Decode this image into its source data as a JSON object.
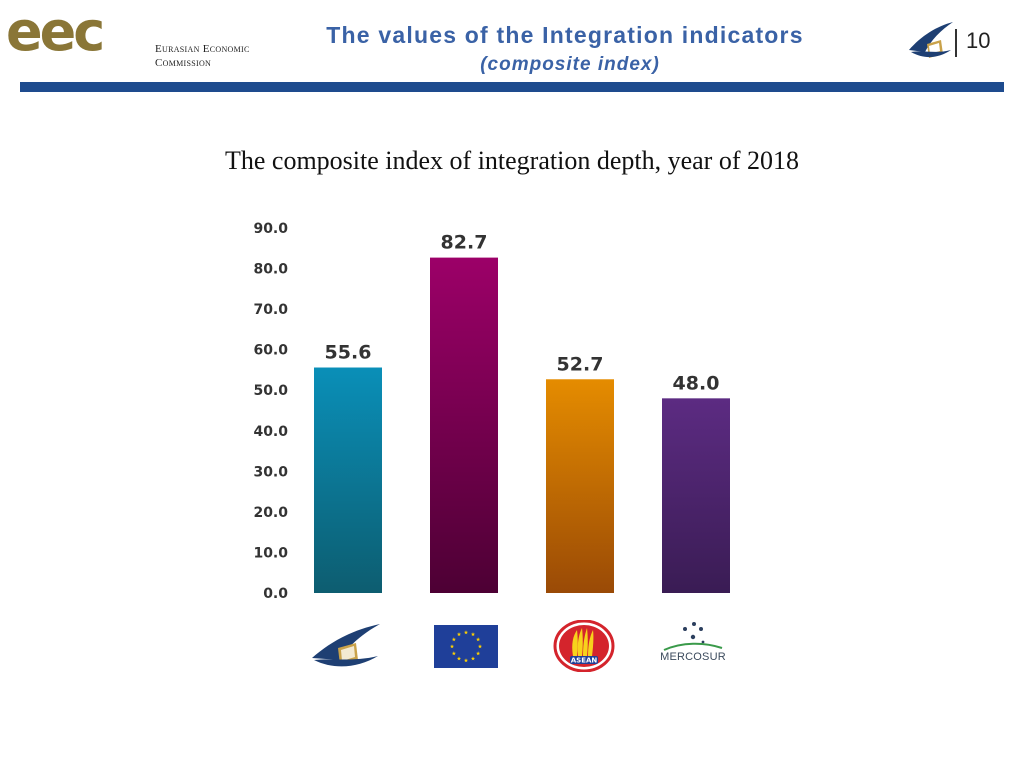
{
  "header": {
    "logo_mark": "eec",
    "logo_line1": "Eurasian Economic",
    "logo_line2": "Commission",
    "title": "The values of the Integration indicators",
    "subtitle": "(composite index)",
    "page_number": "10"
  },
  "chart_heading": "The composite index of integration depth, year of 2018",
  "colors": {
    "brand_blue": "#1e4b8e",
    "title_blue": "#3a62a6"
  },
  "chart_data": {
    "type": "bar",
    "title": "The composite index of integration depth, year of 2018",
    "categories": [
      "EAEU",
      "EU",
      "ASEAN",
      "MERCOSUR"
    ],
    "values": [
      55.6,
      82.7,
      52.7,
      48.0
    ],
    "value_labels": [
      "55.6",
      "82.7",
      "52.7",
      "48.0"
    ],
    "bar_colors": [
      [
        "#0a8fb8",
        "#0d5d70"
      ],
      [
        "#9c0068",
        "#4d0034"
      ],
      [
        "#e58c00",
        "#9a4a06"
      ],
      [
        "#5c2b82",
        "#3a1c54"
      ]
    ],
    "ylim": [
      0,
      90
    ],
    "yticks": [
      "0.0",
      "10.0",
      "20.0",
      "30.0",
      "40.0",
      "50.0",
      "60.0",
      "70.0",
      "80.0",
      "90.0"
    ],
    "grid": false,
    "legend": "none (category logos below bars)"
  },
  "category_logos": {
    "eaeu_icon": "eaeu-emblem-icon",
    "eu_icon": "eu-flag-icon",
    "asean_icon": "asean-emblem-icon",
    "asean_text": "ASEAN",
    "mercosur_icon": "mercosur-stars-icon",
    "mercosur_text": "MERCOSUR"
  }
}
